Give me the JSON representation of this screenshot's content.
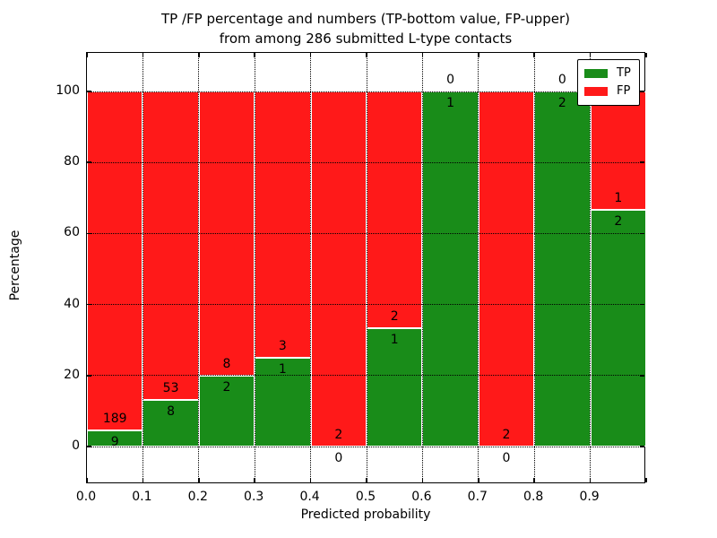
{
  "title": {
    "line1": "TP /FP percentage and numbers (TP-bottom value, FP-upper)",
    "line2": "from among 286 submitted L-type contacts"
  },
  "colors": {
    "tp": "#198C19",
    "fp": "#FF1919",
    "grid": "#000000",
    "axis": "#000000",
    "background": "#FFFFFF"
  },
  "chart_data": {
    "type": "bar",
    "stacked": true,
    "normalized": "each bar scaled to 100%",
    "title": "TP /FP percentage and numbers (TP-bottom value, FP-upper) from among 286 submitted L-type contacts",
    "xlabel": "Predicted probability",
    "ylabel": "Percentage",
    "total_contacts": 286,
    "xtick_labels": [
      "0.0",
      "0.1",
      "0.2",
      "0.3",
      "0.4",
      "0.5",
      "0.6",
      "0.7",
      "0.8",
      "0.9"
    ],
    "ytick_values": [
      0,
      20,
      40,
      60,
      80,
      100
    ],
    "xlim": [
      0.0,
      1.0
    ],
    "ylim": [
      -10.4,
      110.4
    ],
    "bin_width": 0.1,
    "grid": "dotted",
    "legend": {
      "position": "upper right",
      "entries": [
        {
          "label": "TP",
          "color": "#198C19"
        },
        {
          "label": "FP",
          "color": "#FF1919"
        }
      ]
    },
    "series": [
      {
        "name": "TP",
        "position": "bottom",
        "color": "#198C19",
        "counts": [
          9,
          8,
          2,
          1,
          0,
          1,
          1,
          0,
          2,
          2
        ]
      },
      {
        "name": "FP",
        "position": "top",
        "color": "#FF1919",
        "counts": [
          189,
          53,
          8,
          3,
          2,
          2,
          0,
          2,
          0,
          1
        ]
      }
    ],
    "tp_percentages": [
      4.5,
      13.1,
      20.0,
      25.0,
      0.0,
      33.3,
      100.0,
      0.0,
      100.0,
      66.7
    ]
  }
}
